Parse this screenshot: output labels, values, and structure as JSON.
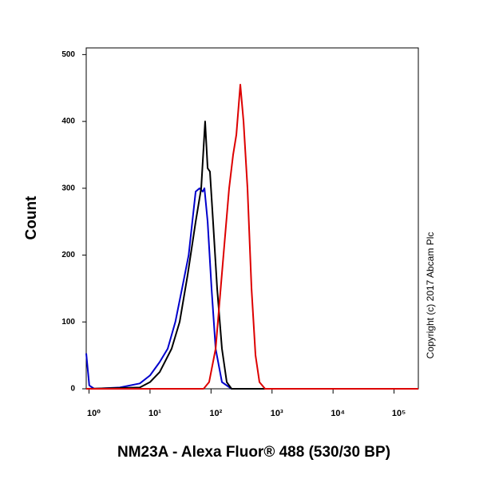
{
  "chart_data": {
    "type": "line",
    "xlabel": "NM23A - Alexa Fluor® 488 (530/30 BP)",
    "ylabel": "Count",
    "annotation": "Copyright (c) 2017 Abcam Plc",
    "xscale": "log",
    "xlim": [
      0.9,
      250000
    ],
    "ylim": [
      0,
      510
    ],
    "xticks": [
      {
        "value": 1,
        "label": "10⁰"
      },
      {
        "value": 10,
        "label": "10¹"
      },
      {
        "value": 100,
        "label": "10²"
      },
      {
        "value": 1000,
        "label": "10³"
      },
      {
        "value": 10000,
        "label": "10⁴"
      },
      {
        "value": 100000,
        "label": "10⁵"
      }
    ],
    "yticks": [
      0,
      100,
      200,
      300,
      400,
      500
    ],
    "series": [
      {
        "color": "#0000cc",
        "x": [
          0.9,
          1.01,
          1.22,
          3.2,
          6.8,
          10,
          14.4,
          19.5,
          26,
          33.5,
          43,
          48,
          56,
          65,
          73,
          78,
          88,
          102,
          119,
          151,
          217,
          250000
        ],
        "values": [
          53,
          5,
          0,
          2,
          8,
          20,
          40,
          60,
          100,
          150,
          200,
          240,
          295,
          300,
          295,
          300,
          250,
          150,
          60,
          10,
          0,
          0
        ]
      },
      {
        "color": "#000000",
        "x": [
          0.9,
          6.8,
          10,
          14.4,
          22.6,
          30.6,
          41.3,
          56,
          69,
          80,
          88,
          96,
          108,
          126,
          151,
          181,
          217,
          250000
        ],
        "values": [
          0,
          2,
          10,
          25,
          60,
          100,
          170,
          250,
          300,
          400,
          330,
          325,
          250,
          150,
          60,
          10,
          0,
          0
        ]
      },
      {
        "color": "#dd0000",
        "x": [
          0.9,
          75.5,
          93,
          119,
          160,
          198,
          230,
          260,
          302,
          341,
          396,
          461,
          536,
          622,
          769,
          250000
        ],
        "values": [
          0,
          0,
          10,
          60,
          200,
          300,
          350,
          380,
          455,
          400,
          300,
          150,
          50,
          10,
          0,
          0
        ]
      }
    ]
  }
}
